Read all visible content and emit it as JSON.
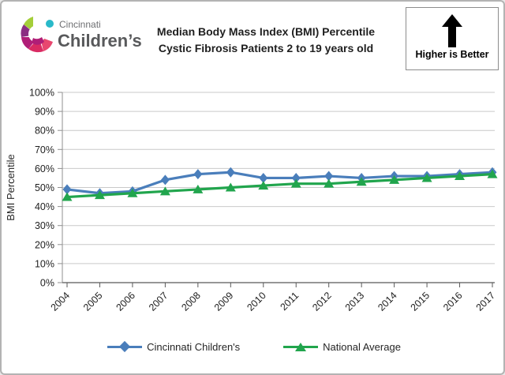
{
  "header": {
    "logo": {
      "line1": "Cincinnati",
      "line2": "Children’s"
    },
    "title_line1": "Median Body Mass Index (BMI) Percentile",
    "title_line2": "Cystic Fibrosis Patients 2 to 19 years old",
    "callout": {
      "label": "Higher is Better",
      "icon": "up-arrow"
    }
  },
  "chart_data": {
    "type": "line",
    "title": "Median Body Mass Index (BMI) Percentile — Cystic Fibrosis Patients 2 to 19 years old",
    "xlabel": "",
    "ylabel": "BMI Percentile",
    "ylim": [
      0,
      100
    ],
    "grid": true,
    "legend_position": "bottom",
    "y_tick_values": [
      0,
      10,
      20,
      30,
      40,
      50,
      60,
      70,
      80,
      90,
      100
    ],
    "y_tick_labels": [
      "0%",
      "10%",
      "20%",
      "30%",
      "40%",
      "50%",
      "60%",
      "70%",
      "80%",
      "90%",
      "100%"
    ],
    "categories": [
      "2004",
      "2005",
      "2006",
      "2007",
      "2008",
      "2009",
      "2010",
      "2011",
      "2012",
      "2013",
      "2014",
      "2015",
      "2016",
      "2017"
    ],
    "series": [
      {
        "name": "Cincinnati Children's",
        "color": "#4A7EBB",
        "marker": "diamond",
        "values": [
          49,
          47,
          48,
          54,
          57,
          58,
          55,
          55,
          56,
          55,
          56,
          56,
          57,
          58
        ]
      },
      {
        "name": "National Average",
        "color": "#21A54D",
        "marker": "triangle",
        "values": [
          45,
          46,
          47,
          48,
          49,
          50,
          51,
          52,
          52,
          53,
          54,
          55,
          56,
          57
        ]
      }
    ]
  },
  "colors": {
    "grid": "#c9c9c9",
    "axis": "#8f8f8f",
    "x_axis": "#595959",
    "tick_text": "#1f1f1f",
    "arrow": "#000000",
    "frame_border": "#b3b3b3",
    "logo_text": "#58595b",
    "logo_palette": [
      "#a4ce39",
      "#8a2e82",
      "#b01e77",
      "#d92b63",
      "#e8476f",
      "#29b9c9"
    ]
  }
}
